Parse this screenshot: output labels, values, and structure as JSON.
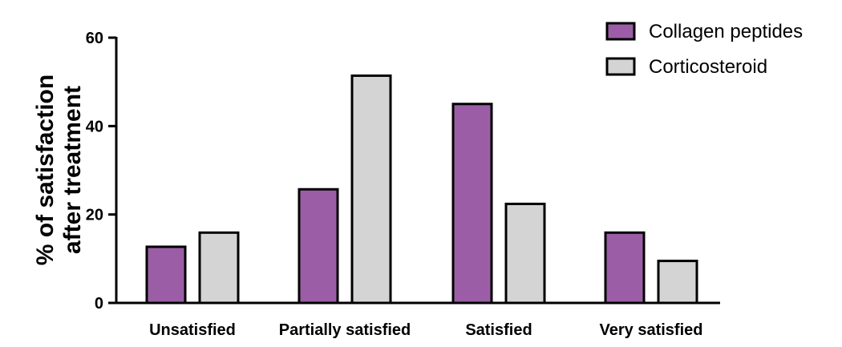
{
  "chart_data": {
    "type": "bar",
    "title": "",
    "xlabel": "",
    "ylabel_lines": [
      "% of satisfaction",
      "after treatment"
    ],
    "categories": [
      "Unsatisfied",
      "Partially satisfied",
      "Satisfied",
      "Very satisfied"
    ],
    "series": [
      {
        "name": "Collagen peptides",
        "color": "#9b5ea6",
        "values": [
          12.7,
          25.7,
          45.0,
          15.9
        ]
      },
      {
        "name": "Corticosteroid",
        "color": "#d4d4d4",
        "values": [
          15.9,
          51.4,
          22.4,
          9.5
        ]
      }
    ],
    "ylim": [
      0,
      60
    ],
    "yticks": [
      0,
      20,
      40,
      60
    ],
    "grid": false,
    "legend_position": "top-right"
  }
}
